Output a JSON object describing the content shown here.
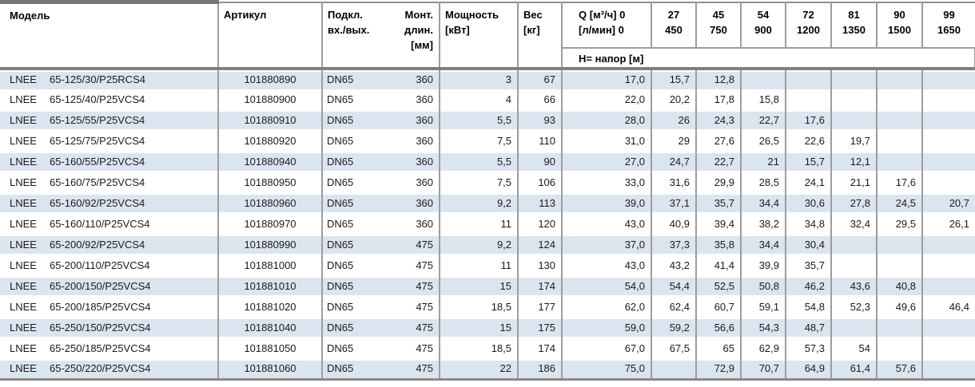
{
  "header": {
    "model": "Модель",
    "article": "Артикул",
    "connection": [
      "Подкл.",
      "вх./вых."
    ],
    "mount": [
      "Монт.",
      "длин.",
      "[мм]"
    ],
    "power": [
      "Мощность",
      "[кВт]"
    ],
    "weight": [
      "Вес",
      "[кг]"
    ],
    "q_flow": [
      "Q [м³/ч] 0",
      "[л/мин] 0"
    ],
    "flow_columns": [
      {
        "m3h": "27",
        "lmin": "450"
      },
      {
        "m3h": "45",
        "lmin": "750"
      },
      {
        "m3h": "54",
        "lmin": "900"
      },
      {
        "m3h": "72",
        "lmin": "1200"
      },
      {
        "m3h": "81",
        "lmin": "1350"
      },
      {
        "m3h": "90",
        "lmin": "1500"
      },
      {
        "m3h": "99",
        "lmin": "1650"
      }
    ],
    "head_row_label": "H= напор [м]"
  },
  "rows": [
    {
      "brand": "LNEE",
      "model": "65-125/30/P25RCS4",
      "article": "101880890",
      "dn": "DN65",
      "mount": "360",
      "power": "3",
      "weight": "67",
      "h": [
        "17,0",
        "15,7",
        "12,8",
        "",
        "",
        "",
        "",
        ""
      ]
    },
    {
      "brand": "LNEE",
      "model": "65-125/40/P25VCS4",
      "article": "101880900",
      "dn": "DN65",
      "mount": "360",
      "power": "4",
      "weight": "66",
      "h": [
        "22,0",
        "20,2",
        "17,8",
        "15,8",
        "",
        "",
        "",
        ""
      ]
    },
    {
      "brand": "LNEE",
      "model": "65-125/55/P25VCS4",
      "article": "101880910",
      "dn": "DN65",
      "mount": "360",
      "power": "5,5",
      "weight": "93",
      "h": [
        "28,0",
        "26",
        "24,3",
        "22,7",
        "17,6",
        "",
        "",
        ""
      ]
    },
    {
      "brand": "LNEE",
      "model": "65-125/75/P25VCS4",
      "article": "101880920",
      "dn": "DN65",
      "mount": "360",
      "power": "7,5",
      "weight": "110",
      "h": [
        "31,0",
        "29",
        "27,6",
        "26,5",
        "22,6",
        "19,7",
        "",
        ""
      ]
    },
    {
      "brand": "LNEE",
      "model": "65-160/55/P25VCS4",
      "article": "101880940",
      "dn": "DN65",
      "mount": "360",
      "power": "5,5",
      "weight": "90",
      "h": [
        "27,0",
        "24,7",
        "22,7",
        "21",
        "15,7",
        "12,1",
        "",
        ""
      ]
    },
    {
      "brand": "LNEE",
      "model": "65-160/75/P25VCS4",
      "article": "101880950",
      "dn": "DN65",
      "mount": "360",
      "power": "7,5",
      "weight": "106",
      "h": [
        "33,0",
        "31,6",
        "29,9",
        "28,5",
        "24,1",
        "21,1",
        "17,6",
        ""
      ]
    },
    {
      "brand": "LNEE",
      "model": "65-160/92/P25VCS4",
      "article": "101880960",
      "dn": "DN65",
      "mount": "360",
      "power": "9,2",
      "weight": "113",
      "h": [
        "39,0",
        "37,1",
        "35,7",
        "34,4",
        "30,6",
        "27,8",
        "24,5",
        "20,7"
      ]
    },
    {
      "brand": "LNEE",
      "model": "65-160/110/P25VCS4",
      "article": "101880970",
      "dn": "DN65",
      "mount": "360",
      "power": "11",
      "weight": "120",
      "h": [
        "43,0",
        "40,9",
        "39,4",
        "38,2",
        "34,8",
        "32,4",
        "29,5",
        "26,1"
      ]
    },
    {
      "brand": "LNEE",
      "model": "65-200/92/P25VCS4",
      "article": "101880990",
      "dn": "DN65",
      "mount": "475",
      "power": "9,2",
      "weight": "124",
      "h": [
        "37,0",
        "37,3",
        "35,8",
        "34,4",
        "30,4",
        "",
        "",
        ""
      ]
    },
    {
      "brand": "LNEE",
      "model": "65-200/110/P25VCS4",
      "article": "101881000",
      "dn": "DN65",
      "mount": "475",
      "power": "11",
      "weight": "130",
      "h": [
        "43,0",
        "43,2",
        "41,4",
        "39,9",
        "35,7",
        "",
        "",
        ""
      ]
    },
    {
      "brand": "LNEE",
      "model": "65-200/150/P25VCS4",
      "article": "101881010",
      "dn": "DN65",
      "mount": "475",
      "power": "15",
      "weight": "174",
      "h": [
        "54,0",
        "54,4",
        "52,5",
        "50,8",
        "46,2",
        "43,6",
        "40,8",
        ""
      ]
    },
    {
      "brand": "LNEE",
      "model": "65-200/185/P25VCS4",
      "article": "101881020",
      "dn": "DN65",
      "mount": "475",
      "power": "18,5",
      "weight": "177",
      "h": [
        "62,0",
        "62,4",
        "60,7",
        "59,1",
        "54,8",
        "52,3",
        "49,6",
        "46,4"
      ]
    },
    {
      "brand": "LNEE",
      "model": "65-250/150/P25VCS4",
      "article": "101881040",
      "dn": "DN65",
      "mount": "475",
      "power": "15",
      "weight": "175",
      "h": [
        "59,0",
        "59,2",
        "56,6",
        "54,3",
        "48,7",
        "",
        "",
        ""
      ]
    },
    {
      "brand": "LNEE",
      "model": "65-250/185/P25VCS4",
      "article": "101881050",
      "dn": "DN65",
      "mount": "475",
      "power": "18,5",
      "weight": "174",
      "h": [
        "67,0",
        "67,5",
        "65",
        "62,9",
        "57,3",
        "54",
        "",
        ""
      ]
    },
    {
      "brand": "LNEE",
      "model": "65-250/220/P25VCS4",
      "article": "101881060",
      "dn": "DN65",
      "mount": "475",
      "power": "22",
      "weight": "186",
      "h": [
        "75,0",
        "",
        "72,9",
        "70,7",
        "64,9",
        "61,4",
        "57,6",
        ""
      ]
    }
  ],
  "colors": {
    "stripe": "#dbe5f0",
    "grid": "#9d9d9d",
    "rule": "#7f7f7f"
  }
}
